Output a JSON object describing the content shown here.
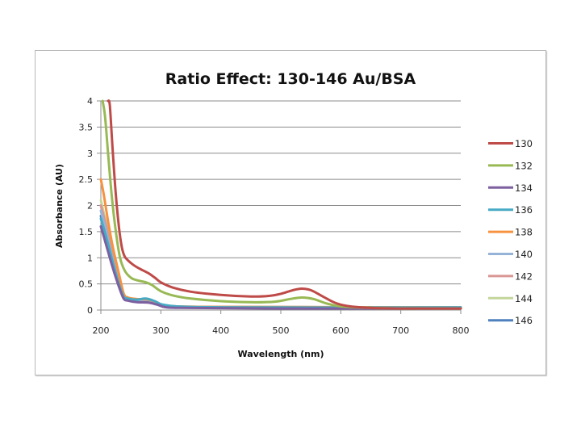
{
  "chart_data": {
    "type": "line",
    "title": "Ratio Effect: 130-146 Au/BSA",
    "xlabel": "Wavelength (nm)",
    "ylabel": "Absorbance (AU)",
    "xlim": [
      200,
      800
    ],
    "ylim": [
      0,
      4
    ],
    "xticks": [
      "200",
      "300",
      "400",
      "500",
      "600",
      "700",
      "800"
    ],
    "yticks": [
      "0",
      "0.5",
      "1",
      "1.5",
      "2",
      "2.5",
      "3",
      "3.5",
      "4"
    ],
    "grid": "horizontal",
    "legend_position": "right",
    "series": [
      {
        "name": "130",
        "color": "#be4b48",
        "points": [
          [
            212,
            4.0
          ],
          [
            215,
            3.9
          ],
          [
            220,
            3.0
          ],
          [
            225,
            2.2
          ],
          [
            230,
            1.6
          ],
          [
            235,
            1.2
          ],
          [
            240,
            1.02
          ],
          [
            250,
            0.9
          ],
          [
            260,
            0.82
          ],
          [
            270,
            0.76
          ],
          [
            280,
            0.7
          ],
          [
            290,
            0.62
          ],
          [
            300,
            0.53
          ],
          [
            320,
            0.43
          ],
          [
            350,
            0.35
          ],
          [
            400,
            0.29
          ],
          [
            450,
            0.26
          ],
          [
            480,
            0.27
          ],
          [
            500,
            0.31
          ],
          [
            520,
            0.38
          ],
          [
            535,
            0.41
          ],
          [
            550,
            0.38
          ],
          [
            570,
            0.26
          ],
          [
            590,
            0.14
          ],
          [
            610,
            0.08
          ],
          [
            650,
            0.04
          ],
          [
            700,
            0.03
          ],
          [
            800,
            0.03
          ]
        ]
      },
      {
        "name": "132",
        "color": "#98b954",
        "points": [
          [
            203,
            4.0
          ],
          [
            207,
            3.7
          ],
          [
            212,
            3.0
          ],
          [
            218,
            2.2
          ],
          [
            225,
            1.5
          ],
          [
            232,
            1.0
          ],
          [
            240,
            0.75
          ],
          [
            250,
            0.62
          ],
          [
            260,
            0.57
          ],
          [
            275,
            0.53
          ],
          [
            285,
            0.48
          ],
          [
            300,
            0.36
          ],
          [
            320,
            0.28
          ],
          [
            350,
            0.22
          ],
          [
            400,
            0.17
          ],
          [
            450,
            0.15
          ],
          [
            490,
            0.16
          ],
          [
            515,
            0.21
          ],
          [
            535,
            0.24
          ],
          [
            555,
            0.21
          ],
          [
            575,
            0.13
          ],
          [
            600,
            0.07
          ],
          [
            650,
            0.04
          ],
          [
            700,
            0.03
          ],
          [
            800,
            0.03
          ]
        ]
      },
      {
        "name": "134",
        "color": "#7d60a0",
        "points": [
          [
            200,
            1.6
          ],
          [
            210,
            1.2
          ],
          [
            220,
            0.8
          ],
          [
            230,
            0.45
          ],
          [
            238,
            0.22
          ],
          [
            245,
            0.18
          ],
          [
            260,
            0.15
          ],
          [
            280,
            0.14
          ],
          [
            295,
            0.1
          ],
          [
            310,
            0.05
          ],
          [
            350,
            0.04
          ],
          [
            500,
            0.03
          ],
          [
            800,
            0.03
          ]
        ]
      },
      {
        "name": "136",
        "color": "#46aac5",
        "points": [
          [
            200,
            1.75
          ],
          [
            210,
            1.35
          ],
          [
            220,
            0.9
          ],
          [
            230,
            0.5
          ],
          [
            238,
            0.26
          ],
          [
            245,
            0.22
          ],
          [
            260,
            0.2
          ],
          [
            275,
            0.22
          ],
          [
            290,
            0.17
          ],
          [
            305,
            0.1
          ],
          [
            350,
            0.06
          ],
          [
            500,
            0.05
          ],
          [
            800,
            0.05
          ]
        ]
      },
      {
        "name": "138",
        "color": "#f69240",
        "points": [
          [
            200,
            2.5
          ],
          [
            205,
            2.2
          ],
          [
            212,
            1.7
          ],
          [
            220,
            1.2
          ],
          [
            230,
            0.7
          ],
          [
            238,
            0.32
          ],
          [
            245,
            0.24
          ],
          [
            260,
            0.21
          ],
          [
            280,
            0.2
          ],
          [
            295,
            0.14
          ],
          [
            310,
            0.08
          ],
          [
            400,
            0.06
          ],
          [
            800,
            0.05
          ]
        ]
      },
      {
        "name": "140",
        "color": "#95b3d7",
        "points": [
          [
            200,
            1.9
          ],
          [
            210,
            1.45
          ],
          [
            220,
            0.95
          ],
          [
            230,
            0.5
          ],
          [
            238,
            0.27
          ],
          [
            248,
            0.21
          ],
          [
            265,
            0.19
          ],
          [
            280,
            0.19
          ],
          [
            295,
            0.13
          ],
          [
            310,
            0.08
          ],
          [
            400,
            0.06
          ],
          [
            800,
            0.05
          ]
        ]
      },
      {
        "name": "142",
        "color": "#d99694",
        "points": [
          [
            200,
            2.0
          ],
          [
            210,
            1.55
          ],
          [
            220,
            1.0
          ],
          [
            230,
            0.55
          ],
          [
            238,
            0.28
          ],
          [
            248,
            0.21
          ],
          [
            265,
            0.19
          ],
          [
            280,
            0.19
          ],
          [
            295,
            0.13
          ],
          [
            310,
            0.08
          ],
          [
            400,
            0.06
          ],
          [
            800,
            0.05
          ]
        ]
      },
      {
        "name": "144",
        "color": "#c3d69b",
        "points": [
          [
            200,
            2.1
          ],
          [
            210,
            1.6
          ],
          [
            220,
            1.05
          ],
          [
            230,
            0.58
          ],
          [
            238,
            0.29
          ],
          [
            248,
            0.22
          ],
          [
            265,
            0.2
          ],
          [
            280,
            0.19
          ],
          [
            295,
            0.13
          ],
          [
            310,
            0.08
          ],
          [
            400,
            0.06
          ],
          [
            800,
            0.05
          ]
        ]
      },
      {
        "name": "146",
        "color": "#4f81bd",
        "points": [
          [
            200,
            1.8
          ],
          [
            210,
            1.35
          ],
          [
            220,
            0.88
          ],
          [
            230,
            0.48
          ],
          [
            238,
            0.24
          ],
          [
            248,
            0.19
          ],
          [
            265,
            0.17
          ],
          [
            280,
            0.17
          ],
          [
            295,
            0.12
          ],
          [
            310,
            0.07
          ],
          [
            400,
            0.05
          ],
          [
            800,
            0.05
          ]
        ]
      }
    ]
  }
}
